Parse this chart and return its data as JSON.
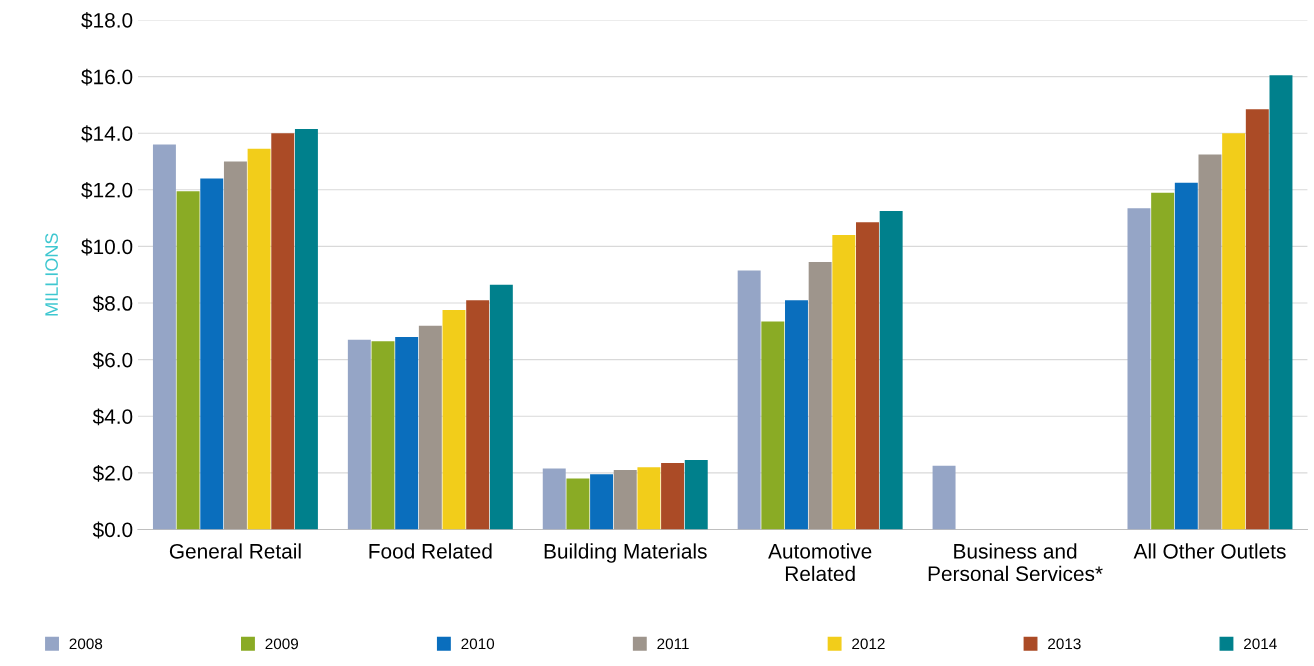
{
  "chart_data": {
    "type": "bar",
    "ylabel": "MILLIONS",
    "categories": [
      "General Retail",
      "Food Related",
      "Building Materials",
      "Automotive\nRelated",
      "Business and\nPersonal Services*",
      "All Other Outlets"
    ],
    "series": [
      {
        "name": "2008",
        "color": "#95a5c6",
        "values": [
          13.6,
          6.7,
          2.15,
          9.15,
          2.25,
          11.35
        ]
      },
      {
        "name": "2009",
        "color": "#8aab25",
        "values": [
          11.95,
          6.65,
          1.8,
          7.35,
          null,
          11.9
        ]
      },
      {
        "name": "2010",
        "color": "#0a6ebd",
        "values": [
          12.4,
          6.8,
          1.95,
          8.1,
          null,
          12.25
        ]
      },
      {
        "name": "2011",
        "color": "#9e958c",
        "values": [
          13.0,
          7.2,
          2.1,
          9.45,
          null,
          13.25
        ]
      },
      {
        "name": "2012",
        "color": "#f2cd1a",
        "values": [
          13.45,
          7.75,
          2.2,
          10.4,
          null,
          14.0
        ]
      },
      {
        "name": "2013",
        "color": "#ab4b26",
        "values": [
          14.0,
          8.1,
          2.35,
          10.85,
          null,
          14.85
        ]
      },
      {
        "name": "2014",
        "color": "#00808c",
        "values": [
          14.15,
          8.65,
          2.45,
          11.25,
          null,
          16.05
        ]
      }
    ],
    "ylim": [
      0,
      18
    ],
    "yticks": [
      {
        "value": 0,
        "label": "$0.0"
      },
      {
        "value": 2,
        "label": "$2.0"
      },
      {
        "value": 4,
        "label": "$4.0"
      },
      {
        "value": 6,
        "label": "$6.0"
      },
      {
        "value": 8,
        "label": "$8.0"
      },
      {
        "value": 10,
        "label": "$10.0"
      },
      {
        "value": 12,
        "label": "$12.0"
      },
      {
        "value": 14,
        "label": "$14.0"
      },
      {
        "value": 16,
        "label": "$16.0"
      },
      {
        "value": 18,
        "label": "$18.0"
      }
    ],
    "grid": "y",
    "legend": "bottom",
    "marker": "square"
  }
}
